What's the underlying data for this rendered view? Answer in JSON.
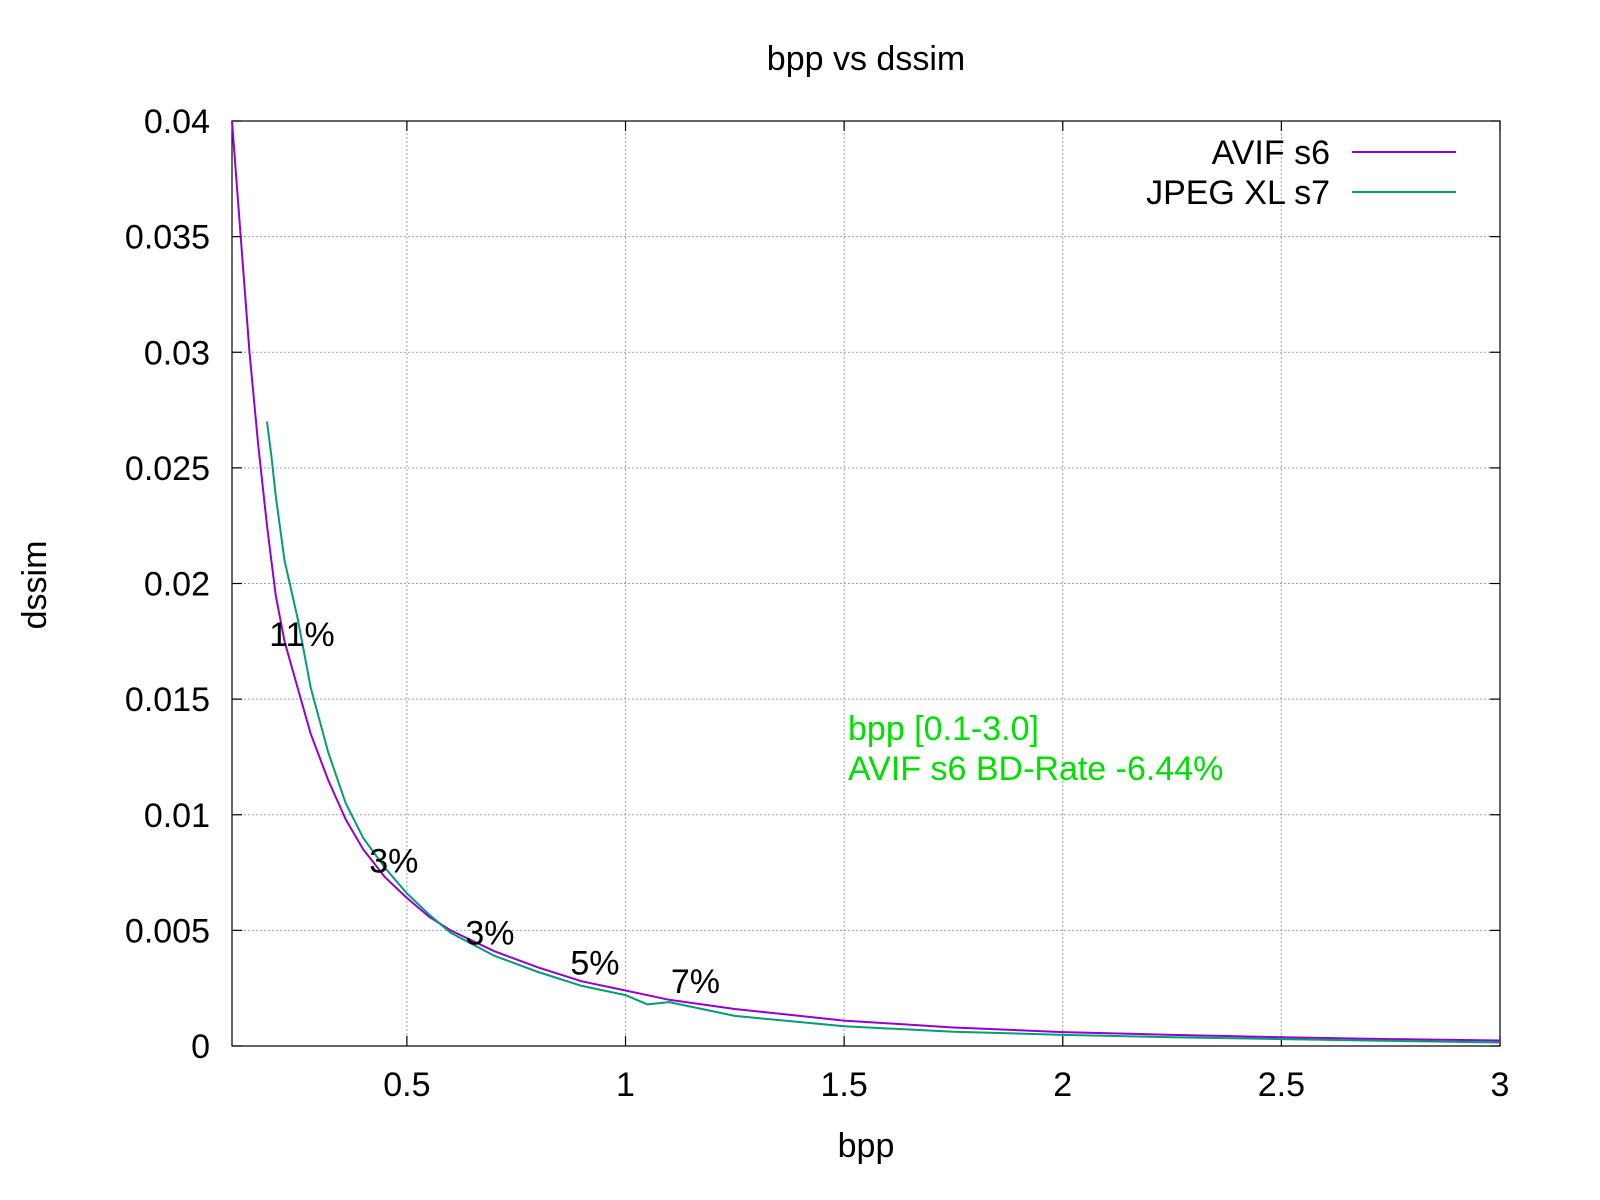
{
  "chart_data": {
    "type": "line",
    "title": "bpp vs dssim",
    "xlabel": "bpp",
    "ylabel": "dssim",
    "xlim": [
      0.1,
      3.0
    ],
    "ylim": [
      0,
      0.04
    ],
    "xticks": [
      {
        "value": 0.5,
        "label": "0.5"
      },
      {
        "value": 1,
        "label": "1"
      },
      {
        "value": 1.5,
        "label": "1.5"
      },
      {
        "value": 2,
        "label": "2"
      },
      {
        "value": 2.5,
        "label": "2.5"
      },
      {
        "value": 3,
        "label": "3"
      }
    ],
    "yticks": [
      {
        "value": 0,
        "label": "0"
      },
      {
        "value": 0.005,
        "label": "0.005"
      },
      {
        "value": 0.01,
        "label": "0.01"
      },
      {
        "value": 0.015,
        "label": "0.015"
      },
      {
        "value": 0.02,
        "label": "0.02"
      },
      {
        "value": 0.025,
        "label": "0.025"
      },
      {
        "value": 0.03,
        "label": "0.03"
      },
      {
        "value": 0.035,
        "label": "0.035"
      },
      {
        "value": 0.04,
        "label": "0.04"
      }
    ],
    "grid": true,
    "legend_position": "top-right",
    "series": [
      {
        "name": "AVIF s6",
        "color": "#9400d3",
        "x": [
          0.1,
          0.12,
          0.14,
          0.16,
          0.18,
          0.2,
          0.22,
          0.25,
          0.28,
          0.32,
          0.36,
          0.4,
          0.45,
          0.5,
          0.55,
          0.6,
          0.7,
          0.8,
          0.9,
          1.0,
          1.1,
          1.25,
          1.5,
          1.75,
          2.0,
          2.25,
          2.5,
          2.75,
          3.0
        ],
        "y": [
          0.04,
          0.035,
          0.03,
          0.026,
          0.0225,
          0.0195,
          0.0175,
          0.0155,
          0.0135,
          0.0115,
          0.0098,
          0.0085,
          0.0073,
          0.0064,
          0.0056,
          0.005,
          0.0041,
          0.0034,
          0.0028,
          0.0024,
          0.002,
          0.0016,
          0.0011,
          0.0008,
          0.0006,
          0.00048,
          0.00038,
          0.0003,
          0.00024
        ]
      },
      {
        "name": "JPEG XL s7",
        "color": "#009e73",
        "x": [
          0.18,
          0.19,
          0.2,
          0.22,
          0.25,
          0.28,
          0.32,
          0.36,
          0.4,
          0.45,
          0.5,
          0.55,
          0.6,
          0.7,
          0.8,
          0.9,
          1.0,
          1.05,
          1.1,
          1.25,
          1.5,
          1.75,
          2.0,
          2.25,
          2.5,
          2.75,
          3.0
        ],
        "y": [
          0.027,
          0.0255,
          0.0238,
          0.021,
          0.0185,
          0.0155,
          0.0127,
          0.0105,
          0.009,
          0.0077,
          0.0066,
          0.0057,
          0.0049,
          0.0039,
          0.0032,
          0.0026,
          0.0022,
          0.0018,
          0.0019,
          0.0013,
          0.00085,
          0.00062,
          0.00048,
          0.00038,
          0.0003,
          0.00022,
          0.00015
        ]
      }
    ],
    "annotations": [
      {
        "text": "11%",
        "x": 0.26,
        "y": 0.0173
      },
      {
        "text": "3%",
        "x": 0.47,
        "y": 0.0075
      },
      {
        "text": "3%",
        "x": 0.69,
        "y": 0.0044
      },
      {
        "text": "5%",
        "x": 0.93,
        "y": 0.0031
      },
      {
        "text": "7%",
        "x": 1.16,
        "y": 0.0023
      }
    ],
    "note": {
      "lines": [
        "bpp [0.1-3.0]",
        "AVIF s6 BD-Rate -6.44%"
      ],
      "color": "#00e000"
    }
  }
}
